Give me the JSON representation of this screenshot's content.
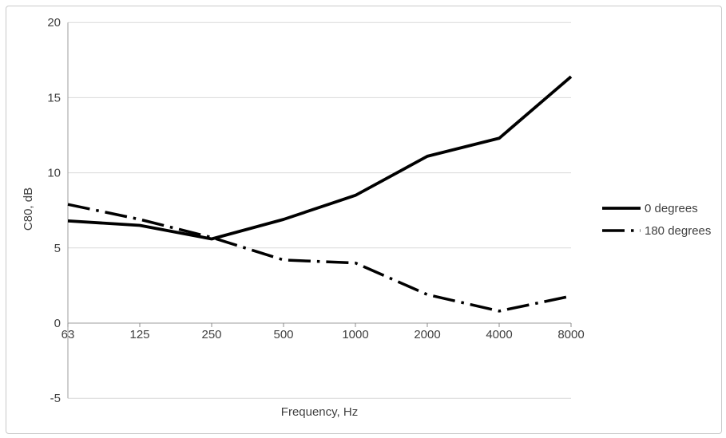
{
  "chart_data": {
    "type": "line",
    "categories": [
      "63",
      "125",
      "250",
      "500",
      "1000",
      "2000",
      "4000",
      "8000"
    ],
    "series": [
      {
        "name": "0 degrees",
        "style": "solid",
        "values": [
          6.8,
          6.5,
          5.6,
          6.9,
          8.5,
          11.1,
          12.3,
          16.4
        ]
      },
      {
        "name": "180 degrees",
        "style": "dash-dot",
        "values": [
          7.9,
          6.9,
          5.7,
          4.2,
          4.0,
          1.9,
          0.8,
          1.8
        ]
      }
    ],
    "xlabel": "Frequency, Hz",
    "ylabel": "C80, dB",
    "ylim": [
      -5,
      20
    ],
    "yticks": [
      20,
      15,
      10,
      5,
      0,
      -5
    ],
    "x_axis_at": 0,
    "grid": true,
    "legend_position": "right",
    "colors": {
      "line": "#000000",
      "grid": "#d9d9d9",
      "axis": "#9c9c9c",
      "tick": "#8c8c8c",
      "text": "#404040",
      "frame_border": "#c9c9c9"
    }
  }
}
